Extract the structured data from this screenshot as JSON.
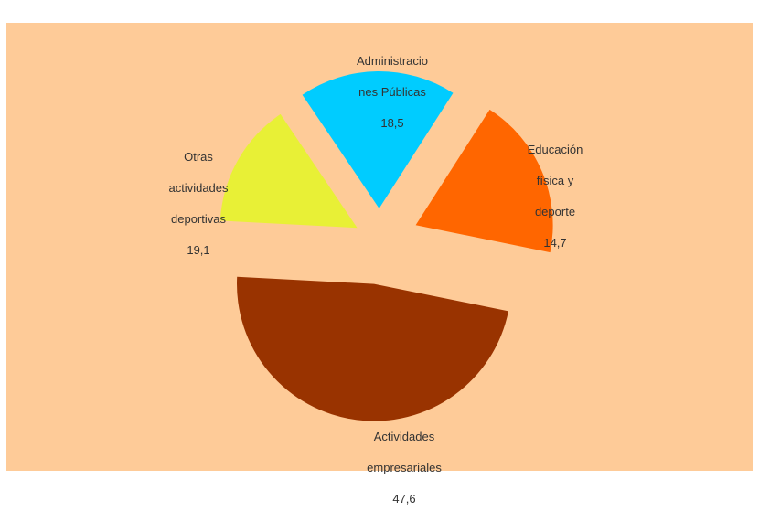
{
  "chart_data": {
    "type": "pie",
    "title": "",
    "exploded": true,
    "slices": [
      {
        "label": "Actividades empresariales",
        "label_lines": [
          "Actividades",
          "empresariales"
        ],
        "value": 47.6,
        "value_text": "47,6",
        "color": "#993300"
      },
      {
        "label": "Otras actividades deportivas",
        "label_lines": [
          "Otras",
          "actividades",
          "deportivas"
        ],
        "value": 19.1,
        "value_text": "19,1",
        "color": "#ff6600"
      },
      {
        "label": "Administraciones Públicas",
        "label_lines": [
          "Administracio",
          "nes Públicas"
        ],
        "value": 18.5,
        "value_text": "18,5",
        "color": "#00ccff"
      },
      {
        "label": "Educación física y deporte",
        "label_lines": [
          "Educación",
          "física y",
          "deporte"
        ],
        "value": 14.7,
        "value_text": "14,7",
        "color": "#e8f036"
      }
    ],
    "background": "#fecb98"
  }
}
